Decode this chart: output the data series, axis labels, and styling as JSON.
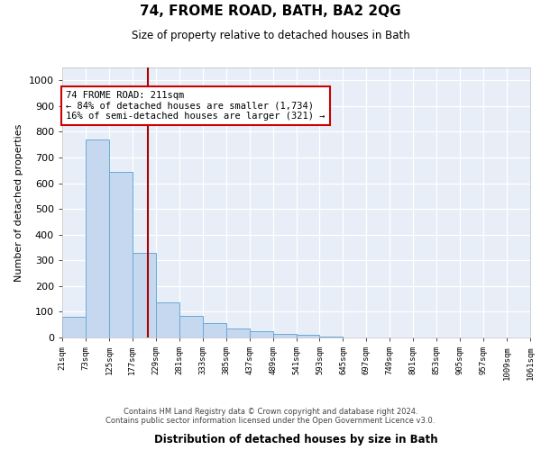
{
  "title": "74, FROME ROAD, BATH, BA2 2QG",
  "subtitle": "Size of property relative to detached houses in Bath",
  "xlabel": "Distribution of detached houses by size in Bath",
  "ylabel": "Number of detached properties",
  "bar_edges": [
    21,
    73,
    125,
    177,
    229,
    281,
    333,
    385,
    437,
    489,
    541,
    593,
    645,
    697,
    749,
    801,
    853,
    905,
    957,
    1009,
    1061
  ],
  "bar_values": [
    80,
    770,
    645,
    330,
    135,
    85,
    55,
    35,
    25,
    15,
    10,
    3,
    0,
    0,
    0,
    0,
    0,
    0,
    0,
    0
  ],
  "bar_color": "#c5d8f0",
  "bar_edge_color": "#6aaad4",
  "vline_x": 211,
  "vline_color": "#aa0000",
  "annotation_text": "74 FROME ROAD: 211sqm\n← 84% of detached houses are smaller (1,734)\n16% of semi-detached houses are larger (321) →",
  "annotation_box_color": "#ffffff",
  "annotation_box_edge": "#cc0000",
  "footer": "Contains HM Land Registry data © Crown copyright and database right 2024.\nContains public sector information licensed under the Open Government Licence v3.0.",
  "tick_labels": [
    "21sqm",
    "73sqm",
    "125sqm",
    "177sqm",
    "229sqm",
    "281sqm",
    "333sqm",
    "385sqm",
    "437sqm",
    "489sqm",
    "541sqm",
    "593sqm",
    "645sqm",
    "697sqm",
    "749sqm",
    "801sqm",
    "853sqm",
    "905sqm",
    "957sqm",
    "1009sqm",
    "1061sqm"
  ],
  "ylim": [
    0,
    1050
  ],
  "background_color": "#e8eef8",
  "grid_color": "#ffffff",
  "yticks": [
    0,
    100,
    200,
    300,
    400,
    500,
    600,
    700,
    800,
    900,
    1000
  ]
}
